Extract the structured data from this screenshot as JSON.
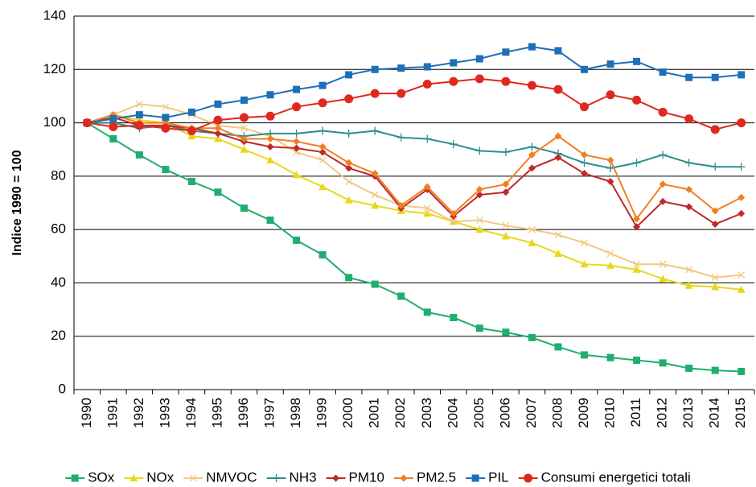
{
  "chart_data": {
    "type": "line",
    "y_label": "Indice 1990 = 100",
    "categories": [
      "1990",
      "1991",
      "1992",
      "1993",
      "1994",
      "1995",
      "1996",
      "1997",
      "1998",
      "1999",
      "2000",
      "2001",
      "2002",
      "2003",
      "2004",
      "2005",
      "2006",
      "2007",
      "2008",
      "2009",
      "2010",
      "2011",
      "2012",
      "2013",
      "2014",
      "2015"
    ],
    "ylim": [
      0,
      140
    ],
    "yticks": [
      0,
      20,
      40,
      60,
      80,
      100,
      120,
      140
    ],
    "grid": true,
    "legend": "bottom",
    "series": [
      {
        "name": "SOx",
        "color": "#1fae6e",
        "marker": "square",
        "values": [
          100,
          94,
          88,
          82.5,
          78,
          74,
          68,
          63.5,
          56,
          50.5,
          42,
          39.5,
          35,
          29,
          27,
          23,
          21.5,
          19.5,
          16,
          13,
          12,
          11,
          10,
          8,
          7.2,
          6.8
        ]
      },
      {
        "name": "NOx",
        "color": "#e8d81a",
        "marker": "triangle",
        "values": [
          100,
          103,
          101,
          100,
          95,
          94,
          90,
          86,
          80.5,
          76,
          71,
          69,
          67,
          66,
          63,
          60,
          57.5,
          55,
          51,
          47,
          46.5,
          45,
          41.5,
          39,
          38.5,
          37.5
        ]
      },
      {
        "name": "NMVOC",
        "color": "#f2c883",
        "marker": "cross",
        "values": [
          100,
          103,
          107,
          106,
          103,
          99,
          98,
          95,
          89,
          86,
          78,
          73,
          69,
          68,
          63,
          63.5,
          61.5,
          60,
          58,
          55,
          51,
          47,
          47,
          45,
          42,
          43
        ]
      },
      {
        "name": "NH3",
        "color": "#2d8d8d",
        "marker": "plus",
        "values": [
          100,
          100,
          98,
          99,
          97,
          96,
          95,
          96,
          96,
          97,
          96,
          97,
          94.5,
          94,
          92,
          89.5,
          89,
          91,
          88.5,
          85,
          83,
          85,
          88,
          85,
          83.5,
          83.5
        ]
      },
      {
        "name": "PM10",
        "color": "#c0282a",
        "marker": "diamond",
        "values": [
          100,
          102,
          99,
          99,
          98,
          96,
          93,
          91,
          90.5,
          89,
          83,
          80,
          68,
          75,
          65,
          73,
          74,
          83,
          87,
          81,
          78,
          61,
          70.5,
          68.5,
          62,
          66
        ]
      },
      {
        "name": "PM2.5",
        "color": "#f07f22",
        "marker": "diamond",
        "values": [
          100,
          103,
          100,
          100,
          98,
          98,
          94,
          94,
          93,
          91,
          85,
          81,
          69,
          76,
          66,
          75,
          77,
          88,
          95,
          88,
          86,
          64,
          77,
          75,
          67,
          72
        ]
      },
      {
        "name": "PIL",
        "color": "#1f6fb8",
        "marker": "square",
        "values": [
          100,
          101.5,
          103,
          102,
          104,
          107,
          108.5,
          110.5,
          112.5,
          114,
          118,
          120,
          120.5,
          121,
          122.5,
          124,
          126.5,
          128.5,
          127,
          120,
          122,
          123,
          119,
          117,
          117,
          118
        ]
      },
      {
        "name": "Consumi energetici totali",
        "color": "#e0281f",
        "marker": "circle",
        "values": [
          100,
          98.5,
          99,
          98,
          97,
          101,
          102,
          102.5,
          106,
          107.5,
          109,
          111,
          111,
          114.5,
          115.5,
          116.5,
          115.5,
          114,
          112.5,
          106,
          110.5,
          108.5,
          104,
          101.5,
          97.5,
          100
        ]
      }
    ]
  }
}
